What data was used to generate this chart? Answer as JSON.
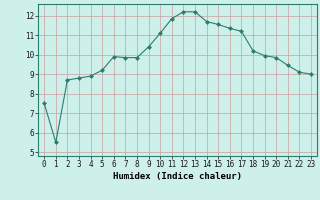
{
  "x": [
    0,
    1,
    2,
    3,
    4,
    5,
    6,
    7,
    8,
    9,
    10,
    11,
    12,
    13,
    14,
    15,
    16,
    17,
    18,
    19,
    20,
    21,
    22,
    23
  ],
  "y": [
    7.5,
    5.5,
    8.7,
    8.8,
    8.9,
    9.2,
    9.9,
    9.85,
    9.85,
    10.4,
    11.1,
    11.85,
    12.2,
    12.2,
    11.7,
    11.55,
    11.35,
    11.2,
    10.2,
    9.95,
    9.85,
    9.45,
    9.1,
    9.0
  ],
  "xlim": [
    -0.5,
    23.5
  ],
  "ylim": [
    4.8,
    12.6
  ],
  "yticks": [
    5,
    6,
    7,
    8,
    9,
    10,
    11,
    12
  ],
  "xticks": [
    0,
    1,
    2,
    3,
    4,
    5,
    6,
    7,
    8,
    9,
    10,
    11,
    12,
    13,
    14,
    15,
    16,
    17,
    18,
    19,
    20,
    21,
    22,
    23
  ],
  "xlabel": "Humidex (Indice chaleur)",
  "line_color": "#2d7d6e",
  "marker": "D",
  "marker_size": 2.0,
  "bg_color": "#cef0ea",
  "grid_color_major": "#c8a0a0",
  "grid_color_minor": "#d8c8c8",
  "tick_fontsize": 5.5,
  "xlabel_fontsize": 6.5
}
